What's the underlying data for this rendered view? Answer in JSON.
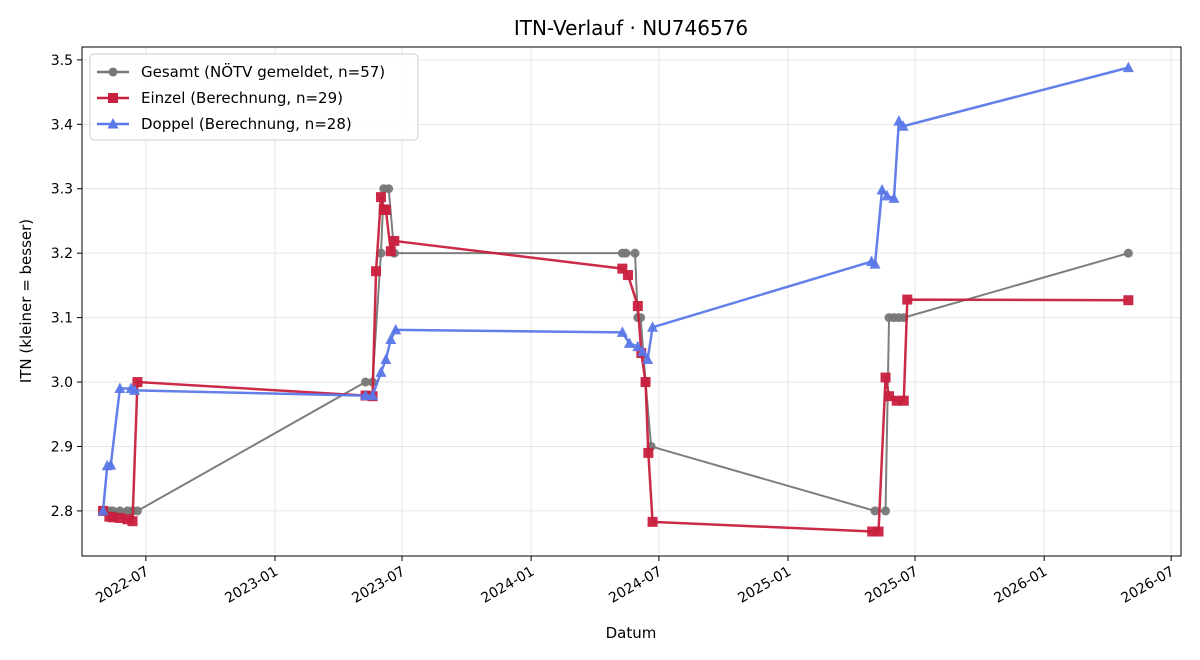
{
  "chart_data": {
    "type": "line",
    "title": "ITN-Verlauf · NU746576",
    "xlabel": "Datum",
    "ylabel": "ITN  (kleiner = besser)",
    "x_type": "date",
    "xlim": [
      "2022-04-01",
      "2026-07-15"
    ],
    "ylim": [
      2.73,
      3.52
    ],
    "x_ticks": [
      "2022-07-01",
      "2023-01-01",
      "2023-07-01",
      "2024-01-01",
      "2024-07-01",
      "2025-01-01",
      "2025-07-01",
      "2026-01-01",
      "2026-07-01"
    ],
    "x_tick_labels": [
      "2022-07",
      "2023-01",
      "2023-07",
      "2024-01",
      "2024-07",
      "2025-01",
      "2025-07",
      "2026-01",
      "2026-07"
    ],
    "y_ticks": [
      2.8,
      2.9,
      3.0,
      3.1,
      3.2,
      3.3,
      3.4,
      3.5
    ],
    "y_tick_labels": [
      "2.8",
      "2.9",
      "3.0",
      "3.1",
      "3.2",
      "3.3",
      "3.4",
      "3.5"
    ],
    "grid": true,
    "legend_position": "top-left",
    "series": [
      {
        "name": "Gesamt (NÖTV gemeldet, n=57)",
        "color": "#777777",
        "marker": "circle",
        "points": [
          [
            "2022-05-01",
            2.8
          ],
          [
            "2022-05-10",
            2.8
          ],
          [
            "2022-05-15",
            2.8
          ],
          [
            "2022-05-25",
            2.8
          ],
          [
            "2022-06-05",
            2.8
          ],
          [
            "2022-06-12",
            2.8
          ],
          [
            "2022-06-19",
            2.8
          ],
          [
            "2023-05-10",
            3.0
          ],
          [
            "2023-05-20",
            3.0
          ],
          [
            "2023-06-01",
            3.2
          ],
          [
            "2023-06-05",
            3.3
          ],
          [
            "2023-06-12",
            3.3
          ],
          [
            "2023-06-20",
            3.2
          ],
          [
            "2024-05-10",
            3.2
          ],
          [
            "2024-05-15",
            3.2
          ],
          [
            "2024-05-28",
            3.2
          ],
          [
            "2024-06-01",
            3.1
          ],
          [
            "2024-06-05",
            3.1
          ],
          [
            "2024-06-12",
            3.0
          ],
          [
            "2024-06-20",
            2.9
          ],
          [
            "2025-05-05",
            2.8
          ],
          [
            "2025-05-20",
            2.8
          ],
          [
            "2025-05-25",
            3.1
          ],
          [
            "2025-06-01",
            3.1
          ],
          [
            "2025-06-08",
            3.1
          ],
          [
            "2025-06-15",
            3.1
          ],
          [
            "2026-05-01",
            3.2
          ]
        ]
      },
      {
        "name": "Einzel (Berechnung, n=29)",
        "color": "#c8203e",
        "marker": "square",
        "points": [
          [
            "2022-05-01",
            2.8
          ],
          [
            "2022-05-10",
            2.791
          ],
          [
            "2022-05-15",
            2.79
          ],
          [
            "2022-05-25",
            2.789
          ],
          [
            "2022-06-05",
            2.787
          ],
          [
            "2022-06-12",
            2.784
          ],
          [
            "2022-06-19",
            3.0
          ],
          [
            "2023-05-10",
            2.979
          ],
          [
            "2023-05-20",
            2.978
          ],
          [
            "2023-05-25",
            3.172
          ],
          [
            "2023-06-01",
            3.287
          ],
          [
            "2023-06-05",
            3.268
          ],
          [
            "2023-06-08",
            3.267
          ],
          [
            "2023-06-15",
            3.203
          ],
          [
            "2023-06-20",
            3.219
          ],
          [
            "2024-05-10",
            3.176
          ],
          [
            "2024-05-18",
            3.166
          ],
          [
            "2024-06-01",
            3.118
          ],
          [
            "2024-06-06",
            3.045
          ],
          [
            "2024-06-12",
            3.0
          ],
          [
            "2024-06-16",
            2.89
          ],
          [
            "2024-06-22",
            2.783
          ],
          [
            "2025-05-01",
            2.768
          ],
          [
            "2025-05-10",
            2.768
          ],
          [
            "2025-05-20",
            3.007
          ],
          [
            "2025-05-25",
            2.978
          ],
          [
            "2025-06-05",
            2.971
          ],
          [
            "2025-06-15",
            2.971
          ],
          [
            "2025-06-20",
            3.128
          ],
          [
            "2026-05-01",
            3.127
          ]
        ]
      },
      {
        "name": "Doppel (Berechnung, n=28)",
        "color": "#5b78e8",
        "marker": "triangle",
        "points": [
          [
            "2022-05-01",
            2.8
          ],
          [
            "2022-05-07",
            2.87
          ],
          [
            "2022-05-12",
            2.871
          ],
          [
            "2022-05-25",
            2.99
          ],
          [
            "2022-06-10",
            2.99
          ],
          [
            "2022-06-15",
            2.987
          ],
          [
            "2023-05-10",
            2.979
          ],
          [
            "2023-05-20",
            2.979
          ],
          [
            "2023-06-01",
            3.015
          ],
          [
            "2023-06-08",
            3.035
          ],
          [
            "2023-06-15",
            3.066
          ],
          [
            "2023-06-22",
            3.081
          ],
          [
            "2024-05-10",
            3.077
          ],
          [
            "2024-05-20",
            3.06
          ],
          [
            "2024-06-01",
            3.055
          ],
          [
            "2024-06-08",
            3.047
          ],
          [
            "2024-06-15",
            3.035
          ],
          [
            "2024-06-22",
            3.085
          ],
          [
            "2025-04-30",
            3.187
          ],
          [
            "2025-05-05",
            3.183
          ],
          [
            "2025-05-15",
            3.298
          ],
          [
            "2025-05-22",
            3.289
          ],
          [
            "2025-06-01",
            3.285
          ],
          [
            "2025-06-08",
            3.405
          ],
          [
            "2025-06-14",
            3.397
          ],
          [
            "2026-05-01",
            3.488
          ]
        ]
      }
    ]
  }
}
